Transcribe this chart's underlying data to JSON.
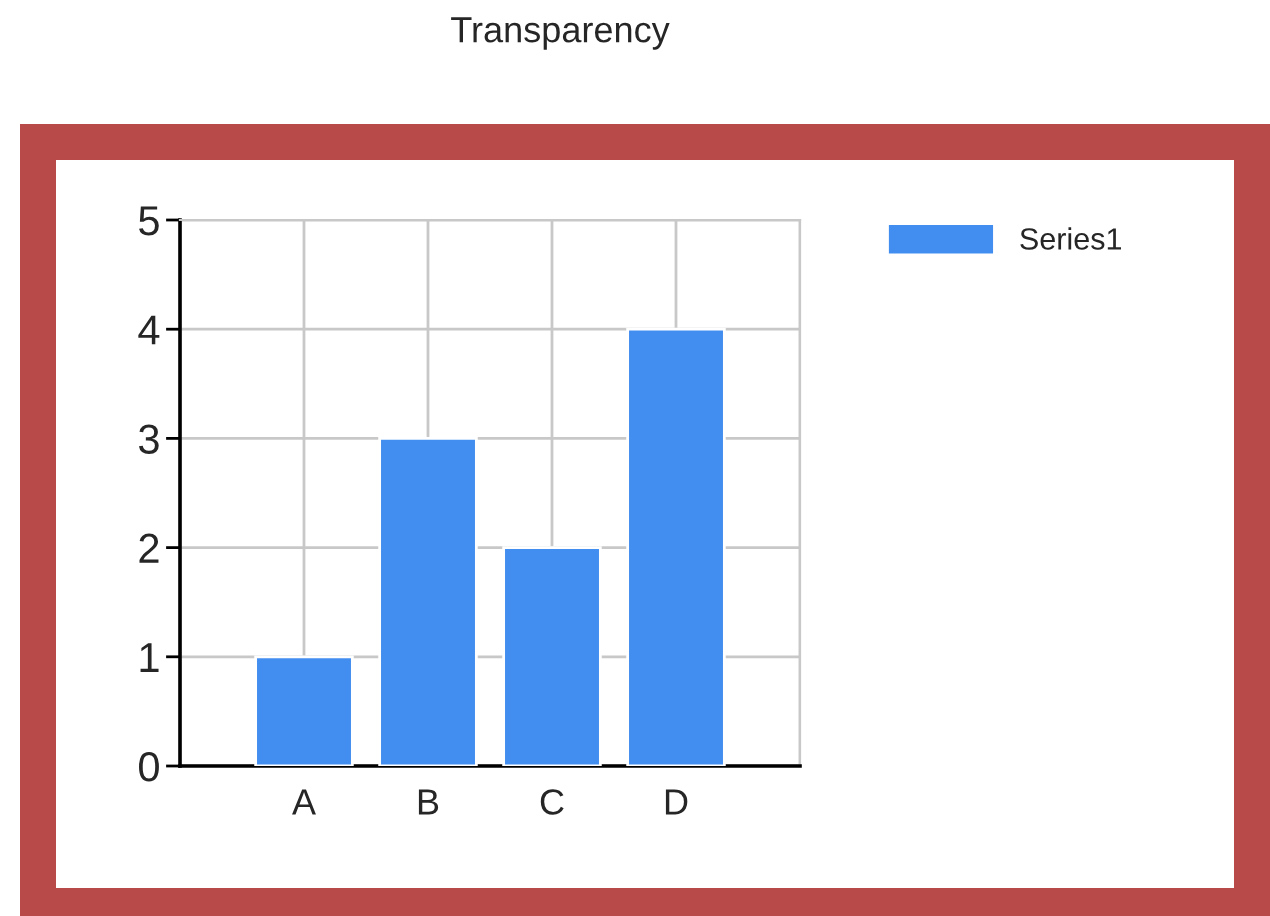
{
  "chart_data": {
    "type": "bar",
    "title": "Transparency",
    "categories": [
      "A",
      "B",
      "C",
      "D"
    ],
    "series": [
      {
        "name": "Series1",
        "color": "#428df0",
        "values": [
          1,
          3,
          2,
          4
        ]
      }
    ],
    "ylim": [
      0,
      5
    ],
    "yticks": [
      0,
      1,
      2,
      3,
      4,
      5
    ],
    "grid": true,
    "legend": "right"
  }
}
